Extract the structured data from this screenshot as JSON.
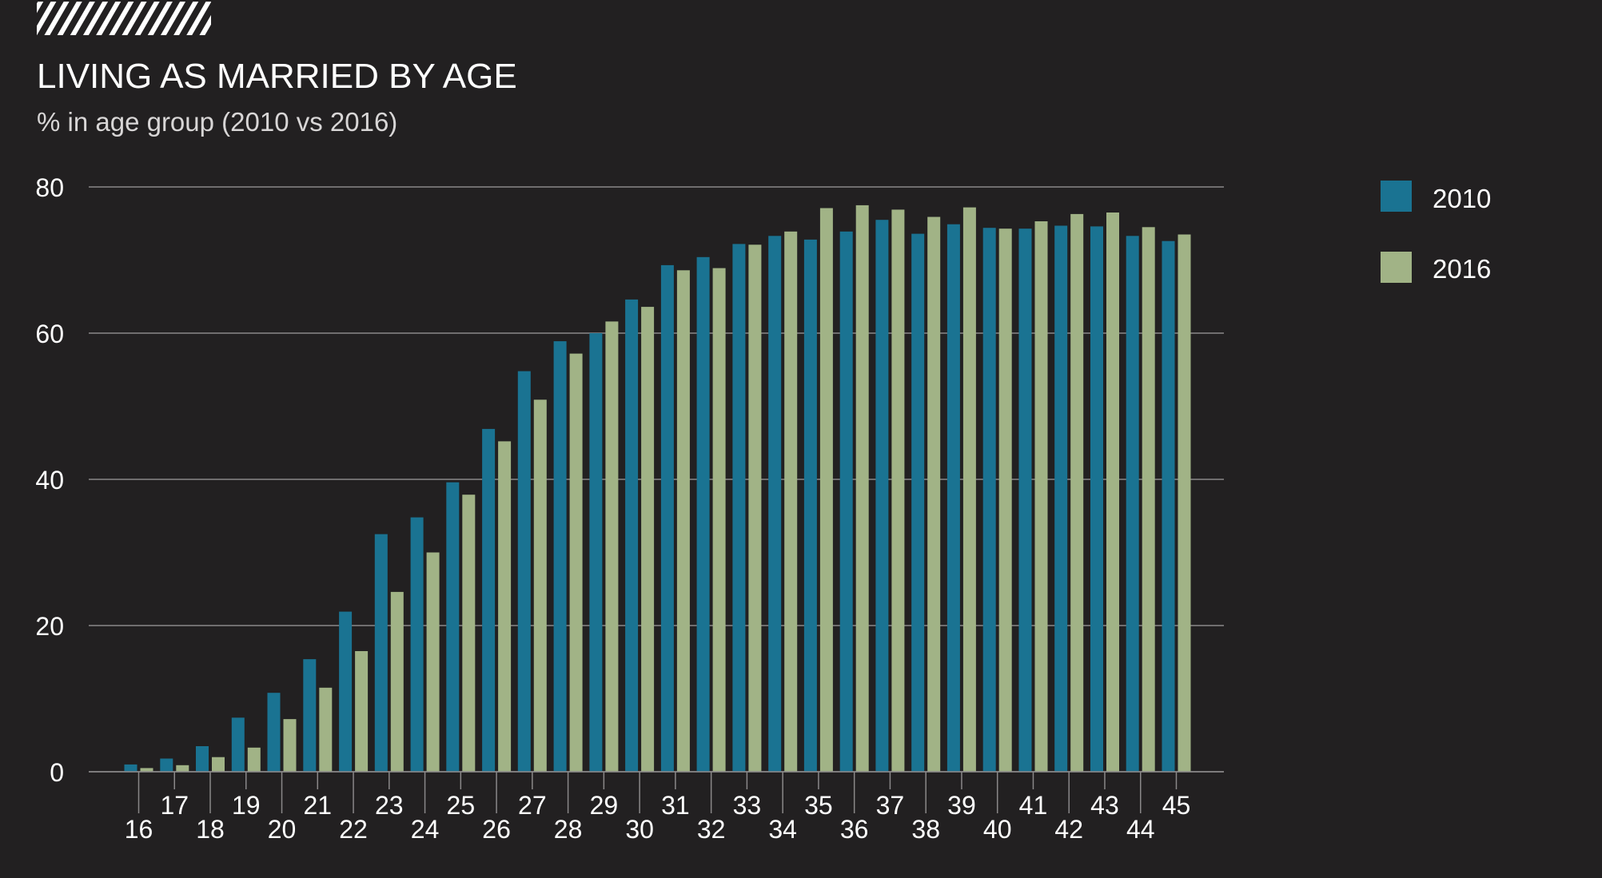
{
  "colors": {
    "background": "#222021",
    "series_2010": "#1a7392",
    "series_2016": "#a1b386",
    "gridline": "#8a8889",
    "text": "#ffffff"
  },
  "chart_data": {
    "type": "bar",
    "title": "LIVING AS MARRIED BY AGE",
    "subtitle": "% in age group (2010 vs 2016)",
    "xlabel": "",
    "ylabel": "",
    "ylim": [
      0,
      80
    ],
    "yticks": [
      "0",
      "20",
      "40",
      "60",
      "80"
    ],
    "grid": true,
    "legend_position": "top-right",
    "categories": [
      "16",
      "17",
      "18",
      "19",
      "20",
      "21",
      "22",
      "23",
      "24",
      "25",
      "26",
      "27",
      "28",
      "29",
      "30",
      "31",
      "32",
      "33",
      "34",
      "35",
      "36",
      "37",
      "38",
      "39",
      "40",
      "41",
      "42",
      "43",
      "44",
      "45"
    ],
    "series": [
      {
        "name": "2010",
        "values": [
          1.0,
          1.8,
          3.5,
          7.4,
          10.8,
          15.4,
          21.9,
          32.5,
          34.8,
          39.6,
          46.9,
          54.8,
          58.9,
          60.0,
          64.6,
          69.3,
          70.4,
          72.2,
          73.3,
          72.8,
          73.9,
          75.5,
          73.6,
          74.9,
          74.4,
          74.3,
          74.7,
          74.6,
          73.3,
          72.6
        ],
        "color": "#1a7392"
      },
      {
        "name": "2016",
        "values": [
          0.5,
          0.9,
          2.0,
          3.3,
          7.2,
          11.5,
          16.5,
          24.6,
          30.0,
          37.9,
          45.2,
          50.9,
          57.2,
          61.6,
          63.6,
          68.6,
          68.9,
          72.1,
          73.9,
          77.1,
          77.5,
          76.9,
          75.9,
          77.2,
          74.3,
          75.3,
          76.3,
          76.5,
          74.5,
          73.5
        ],
        "color": "#a1b386"
      }
    ]
  }
}
